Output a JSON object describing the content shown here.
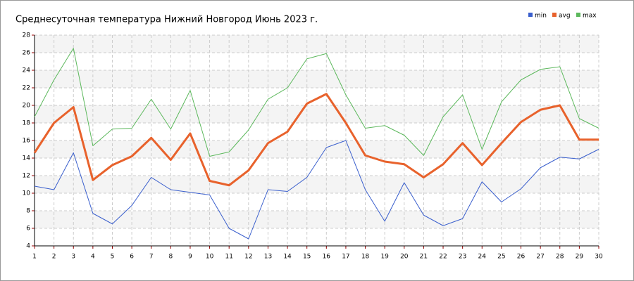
{
  "chart_data": {
    "type": "line",
    "title": "Среднесуточная температура Нижний Новгород  Июнь 2023 г.",
    "x": [
      1,
      2,
      3,
      4,
      5,
      6,
      7,
      8,
      9,
      10,
      11,
      12,
      13,
      14,
      15,
      16,
      17,
      18,
      19,
      20,
      21,
      22,
      23,
      24,
      25,
      26,
      27,
      28,
      29,
      30
    ],
    "xlim": [
      1,
      30
    ],
    "xticks": [
      1,
      2,
      3,
      4,
      5,
      6,
      7,
      8,
      9,
      10,
      11,
      12,
      13,
      14,
      15,
      16,
      17,
      18,
      19,
      20,
      21,
      22,
      23,
      24,
      25,
      26,
      27,
      28,
      29,
      30
    ],
    "ylim": [
      4,
      28
    ],
    "yticks": [
      4,
      6,
      8,
      10,
      12,
      14,
      16,
      18,
      20,
      22,
      24,
      26,
      28
    ],
    "grid": true,
    "legend": "top-right",
    "series": [
      {
        "name": "min",
        "color": "#3a5fcd",
        "values": [
          10.8,
          10.4,
          14.6,
          7.7,
          6.5,
          8.6,
          11.8,
          10.4,
          10.1,
          9.8,
          6.0,
          4.8,
          10.4,
          10.2,
          11.8,
          15.2,
          16.0,
          10.4,
          6.8,
          11.2,
          7.5,
          6.3,
          7.1,
          11.3,
          9.0,
          10.5,
          12.9,
          14.1,
          13.9,
          15.0
        ]
      },
      {
        "name": "avg",
        "color": "#e8622c",
        "values": [
          14.6,
          18.0,
          19.8,
          11.5,
          13.2,
          14.2,
          16.3,
          13.8,
          16.8,
          11.4,
          10.9,
          12.6,
          15.7,
          17.0,
          20.2,
          21.3,
          18.0,
          14.3,
          13.6,
          13.3,
          11.8,
          13.3,
          15.7,
          13.2,
          15.7,
          18.1,
          19.5,
          20.0,
          16.1,
          16.1
        ]
      },
      {
        "name": "max",
        "color": "#5cb85c",
        "values": [
          18.7,
          22.9,
          26.5,
          15.4,
          17.3,
          17.4,
          20.7,
          17.3,
          21.7,
          14.2,
          14.7,
          17.2,
          20.7,
          22.0,
          25.3,
          25.9,
          21.2,
          17.4,
          17.7,
          16.6,
          14.3,
          18.7,
          21.2,
          15.0,
          20.4,
          22.9,
          24.1,
          24.4,
          18.5,
          17.4
        ]
      }
    ]
  }
}
